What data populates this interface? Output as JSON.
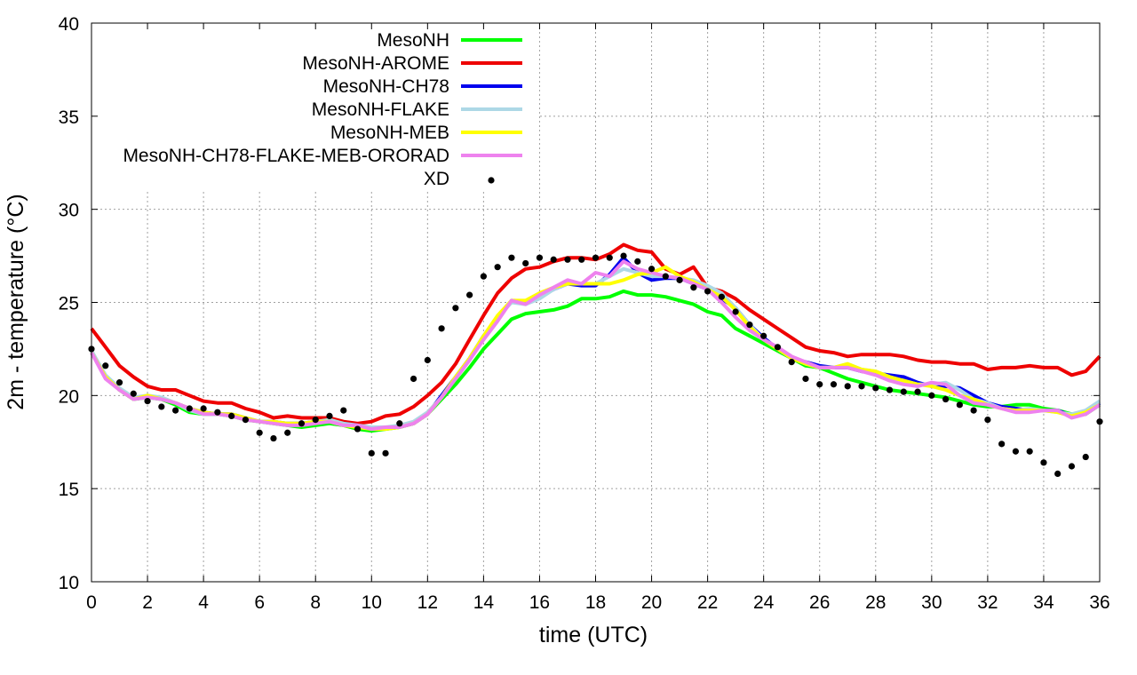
{
  "chart_data": {
    "type": "line",
    "title": "",
    "xlabel": "time (UTC)",
    "ylabel": "2m - temperature (°C)",
    "xlim": [
      0,
      36
    ],
    "ylim": [
      10,
      40
    ],
    "xticks": [
      0,
      2,
      4,
      6,
      8,
      10,
      12,
      14,
      16,
      18,
      20,
      22,
      24,
      26,
      28,
      30,
      32,
      34,
      36
    ],
    "yticks": [
      10,
      15,
      20,
      25,
      30,
      35,
      40
    ],
    "grid": true,
    "legend_position": "top-left",
    "x": [
      0,
      0.5,
      1,
      1.5,
      2,
      2.5,
      3,
      3.5,
      4,
      4.5,
      5,
      5.5,
      6,
      6.5,
      7,
      7.5,
      8,
      8.5,
      9,
      9.5,
      10,
      10.5,
      11,
      11.5,
      12,
      12.5,
      13,
      13.5,
      14,
      14.5,
      15,
      15.5,
      16,
      16.5,
      17,
      17.5,
      18,
      18.5,
      19,
      19.5,
      20,
      20.5,
      21,
      21.5,
      22,
      22.5,
      23,
      23.5,
      24,
      24.5,
      25,
      25.5,
      26,
      26.5,
      27,
      27.5,
      28,
      28.5,
      29,
      29.5,
      30,
      30.5,
      31,
      31.5,
      32,
      32.5,
      33,
      33.5,
      34,
      34.5,
      35,
      35.5,
      36
    ],
    "series": [
      {
        "name": "MesoNH",
        "color": "#00ff00",
        "style": "line",
        "values": [
          22.4,
          21.0,
          20.3,
          19.8,
          19.9,
          19.8,
          19.5,
          19.1,
          19.0,
          19.0,
          18.9,
          18.7,
          18.6,
          18.5,
          18.4,
          18.3,
          18.4,
          18.5,
          18.4,
          18.2,
          18.1,
          18.2,
          18.3,
          18.5,
          19.0,
          19.8,
          20.6,
          21.5,
          22.5,
          23.3,
          24.1,
          24.4,
          24.5,
          24.6,
          24.8,
          25.2,
          25.2,
          25.3,
          25.6,
          25.4,
          25.4,
          25.3,
          25.1,
          24.9,
          24.5,
          24.3,
          23.6,
          23.2,
          22.8,
          22.4,
          22.0,
          21.6,
          21.5,
          21.2,
          20.9,
          20.7,
          20.5,
          20.3,
          20.2,
          20.1,
          20.0,
          19.9,
          19.7,
          19.5,
          19.4,
          19.4,
          19.5,
          19.5,
          19.3,
          19.2,
          19.0,
          19.0,
          19.5
        ]
      },
      {
        "name": "MesoNH-AROME",
        "color": "#ee0000",
        "style": "line",
        "values": [
          23.6,
          22.6,
          21.6,
          21.0,
          20.5,
          20.3,
          20.3,
          20.0,
          19.7,
          19.6,
          19.6,
          19.3,
          19.1,
          18.8,
          18.9,
          18.8,
          18.8,
          18.8,
          18.6,
          18.5,
          18.6,
          18.9,
          19.0,
          19.4,
          20.0,
          20.7,
          21.7,
          23.0,
          24.3,
          25.5,
          26.3,
          26.8,
          26.9,
          27.2,
          27.4,
          27.4,
          27.3,
          27.6,
          28.1,
          27.8,
          27.7,
          26.8,
          26.5,
          26.9,
          25.8,
          25.6,
          25.2,
          24.6,
          24.1,
          23.6,
          23.1,
          22.6,
          22.4,
          22.3,
          22.1,
          22.2,
          22.2,
          22.2,
          22.1,
          21.9,
          21.8,
          21.8,
          21.7,
          21.7,
          21.4,
          21.5,
          21.5,
          21.6,
          21.5,
          21.5,
          21.1,
          21.3,
          22.1
        ]
      },
      {
        "name": "MesoNH-CH78",
        "color": "#0000ee",
        "style": "line",
        "values": [
          22.3,
          21.0,
          20.3,
          19.8,
          20.0,
          19.8,
          19.6,
          19.3,
          19.1,
          19.0,
          19.0,
          18.8,
          18.6,
          18.6,
          18.5,
          18.5,
          18.6,
          18.6,
          18.5,
          18.4,
          18.2,
          18.3,
          18.3,
          18.5,
          19.0,
          20.0,
          21.0,
          22.0,
          23.2,
          24.1,
          25.1,
          25.0,
          25.3,
          25.7,
          26.0,
          25.9,
          25.9,
          26.5,
          27.4,
          26.6,
          26.2,
          26.3,
          26.3,
          26.0,
          25.7,
          25.2,
          24.7,
          23.8,
          23.1,
          22.5,
          22.0,
          21.8,
          21.6,
          21.5,
          21.5,
          21.3,
          21.2,
          21.1,
          21.0,
          20.7,
          20.5,
          20.5,
          20.4,
          20.0,
          19.6,
          19.4,
          19.3,
          19.2,
          19.2,
          19.2,
          18.9,
          19.1,
          19.6
        ]
      },
      {
        "name": "MesoNH-FLAKE",
        "color": "#add8e6",
        "style": "line",
        "values": [
          22.4,
          21.1,
          20.4,
          19.9,
          20.0,
          19.9,
          19.6,
          19.2,
          19.0,
          19.0,
          18.9,
          18.8,
          18.6,
          18.6,
          18.5,
          18.5,
          18.6,
          18.7,
          18.5,
          18.4,
          18.3,
          18.3,
          18.4,
          18.6,
          19.1,
          19.9,
          21.0,
          22.0,
          23.2,
          24.2,
          25.0,
          24.9,
          25.2,
          25.7,
          26.0,
          26.0,
          26.0,
          26.4,
          26.8,
          26.6,
          26.4,
          26.4,
          26.3,
          26.2,
          25.9,
          25.5,
          24.7,
          23.8,
          23.0,
          22.5,
          22.0,
          21.7,
          21.5,
          21.5,
          21.7,
          21.4,
          21.3,
          21.0,
          20.8,
          20.6,
          20.6,
          20.7,
          20.3,
          19.8,
          19.6,
          19.3,
          19.2,
          19.3,
          19.2,
          19.1,
          19.0,
          19.2,
          19.7
        ]
      },
      {
        "name": "MesoNH-MEB",
        "color": "#ffff00",
        "style": "line",
        "values": [
          22.3,
          21.0,
          20.3,
          19.8,
          20.0,
          19.8,
          19.6,
          19.3,
          19.1,
          19.0,
          19.0,
          18.8,
          18.6,
          18.6,
          18.5,
          18.5,
          18.6,
          18.6,
          18.4,
          18.3,
          18.2,
          18.2,
          18.3,
          18.5,
          19.0,
          19.9,
          21.0,
          22.0,
          23.2,
          24.3,
          25.1,
          25.1,
          25.5,
          25.8,
          26.0,
          26.0,
          26.0,
          26.0,
          26.2,
          26.5,
          26.6,
          26.9,
          26.4,
          26.1,
          25.7,
          25.3,
          24.6,
          23.7,
          23.0,
          22.5,
          22.0,
          21.7,
          21.5,
          21.5,
          21.7,
          21.4,
          21.3,
          21.0,
          20.8,
          20.6,
          20.5,
          20.3,
          20.0,
          19.8,
          19.5,
          19.3,
          19.2,
          19.2,
          19.2,
          19.1,
          18.9,
          19.1,
          19.5
        ]
      },
      {
        "name": "MesoNH-CH78-FLAKE-MEB-ORORAD",
        "color": "#ee82ee",
        "style": "line",
        "values": [
          22.3,
          20.9,
          20.3,
          19.8,
          19.9,
          19.8,
          19.6,
          19.3,
          19.0,
          19.0,
          18.9,
          18.7,
          18.6,
          18.5,
          18.4,
          18.4,
          18.5,
          18.6,
          18.4,
          18.4,
          18.2,
          18.3,
          18.3,
          18.5,
          19.0,
          19.9,
          20.9,
          21.9,
          23.0,
          24.0,
          25.1,
          24.9,
          25.4,
          25.8,
          26.2,
          26.0,
          26.6,
          26.4,
          27.2,
          26.8,
          26.6,
          26.4,
          26.3,
          26.0,
          25.7,
          25.0,
          24.2,
          23.5,
          23.0,
          22.6,
          22.1,
          21.8,
          21.5,
          21.5,
          21.5,
          21.3,
          21.1,
          20.8,
          20.6,
          20.5,
          20.7,
          20.6,
          20.0,
          19.6,
          19.5,
          19.3,
          19.1,
          19.1,
          19.2,
          19.2,
          18.8,
          19.0,
          19.5
        ]
      },
      {
        "name": "XD",
        "color": "#000000",
        "style": "points",
        "values": [
          22.5,
          21.6,
          20.7,
          20.1,
          19.7,
          19.4,
          19.2,
          19.3,
          19.3,
          19.1,
          18.9,
          18.7,
          18.0,
          17.7,
          18.0,
          18.5,
          18.7,
          18.9,
          19.2,
          18.2,
          16.9,
          16.9,
          18.5,
          20.9,
          21.9,
          23.6,
          24.7,
          25.4,
          26.4,
          26.9,
          27.4,
          27.1,
          27.4,
          27.3,
          27.3,
          27.3,
          27.4,
          27.4,
          27.5,
          27.2,
          26.8,
          26.4,
          26.2,
          25.8,
          25.6,
          25.3,
          24.5,
          23.8,
          23.2,
          22.6,
          21.8,
          20.9,
          20.6,
          20.6,
          20.5,
          20.5,
          20.4,
          20.3,
          20.2,
          20.2,
          20.0,
          19.8,
          19.5,
          19.2,
          18.7,
          17.4,
          17.0,
          17.0,
          16.4,
          15.8,
          16.2,
          16.7,
          18.6
        ]
      }
    ]
  }
}
